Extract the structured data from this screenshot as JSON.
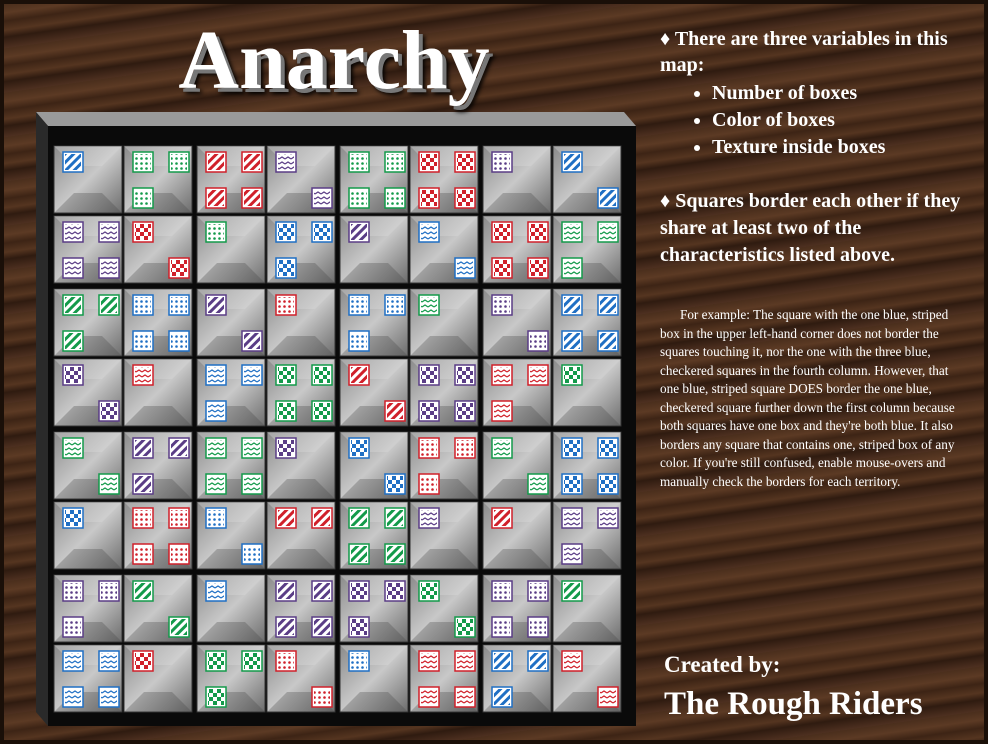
{
  "title": "Anarchy",
  "rules": {
    "intro": "♦ There are three variables in this map:",
    "variables": [
      "Number of boxes",
      "Color of boxes",
      "Texture inside boxes"
    ],
    "border_rule": "♦ Squares border each other if they share at least two of the characteristics listed above."
  },
  "example": "For example: The square with the one blue, striped box in the upper left-hand corner does not border the squares touching it, nor the one with the three blue, checkered squares in the fourth column.  However, that one blue, striped square DOES border the one blue, checkered square further down the first column because both squares have one box and they're both blue.  It also borders any square that contains one, striped box of any color.  If you're still confused, enable mouse-overs and manually check the borders for each territory.",
  "credits": {
    "label": "Created by:",
    "team": "The Rough Riders"
  }
}
